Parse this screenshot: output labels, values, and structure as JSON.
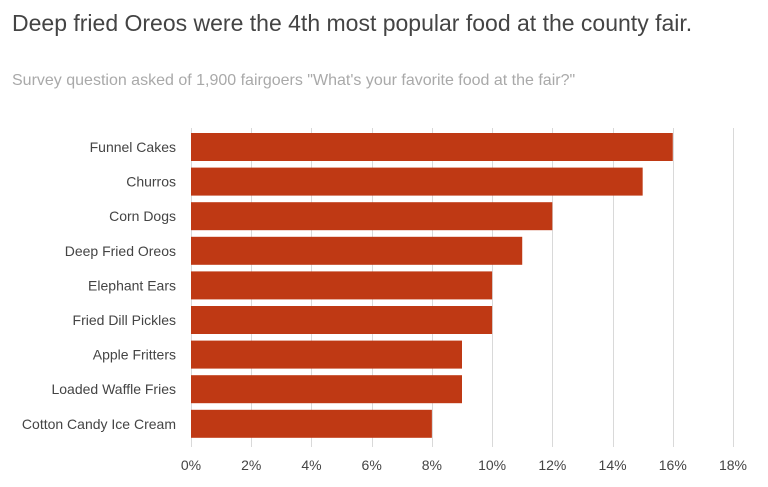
{
  "colors": {
    "bar": "#bf3914",
    "grid": "#d9d9d9",
    "text": "#444444",
    "subtitle": "#a9a9a9"
  },
  "chart_data": {
    "type": "bar",
    "orientation": "horizontal",
    "title": "Deep fried Oreos were the 4th most popular food at the county fair.",
    "subtitle": "Survey question asked of 1,900 fairgoers \"What's your favorite food at the fair?\"",
    "categories": [
      "Funnel Cakes",
      "Churros",
      "Corn Dogs",
      "Deep Fried Oreos",
      "Elephant Ears",
      "Fried Dill Pickles",
      "Apple Fritters",
      "Loaded Waffle Fries",
      "Cotton Candy Ice Cream"
    ],
    "values": [
      16,
      15,
      12,
      11,
      10,
      10,
      9,
      9,
      8
    ],
    "value_unit": "%",
    "xlim": [
      0,
      18
    ],
    "xticks": [
      0,
      2,
      4,
      6,
      8,
      10,
      12,
      14,
      16,
      18
    ],
    "xtick_labels": [
      "0%",
      "2%",
      "4%",
      "6%",
      "8%",
      "10%",
      "12%",
      "14%",
      "16%",
      "18%"
    ],
    "grid": "vertical",
    "legend": "none",
    "xlabel": "",
    "ylabel": ""
  }
}
